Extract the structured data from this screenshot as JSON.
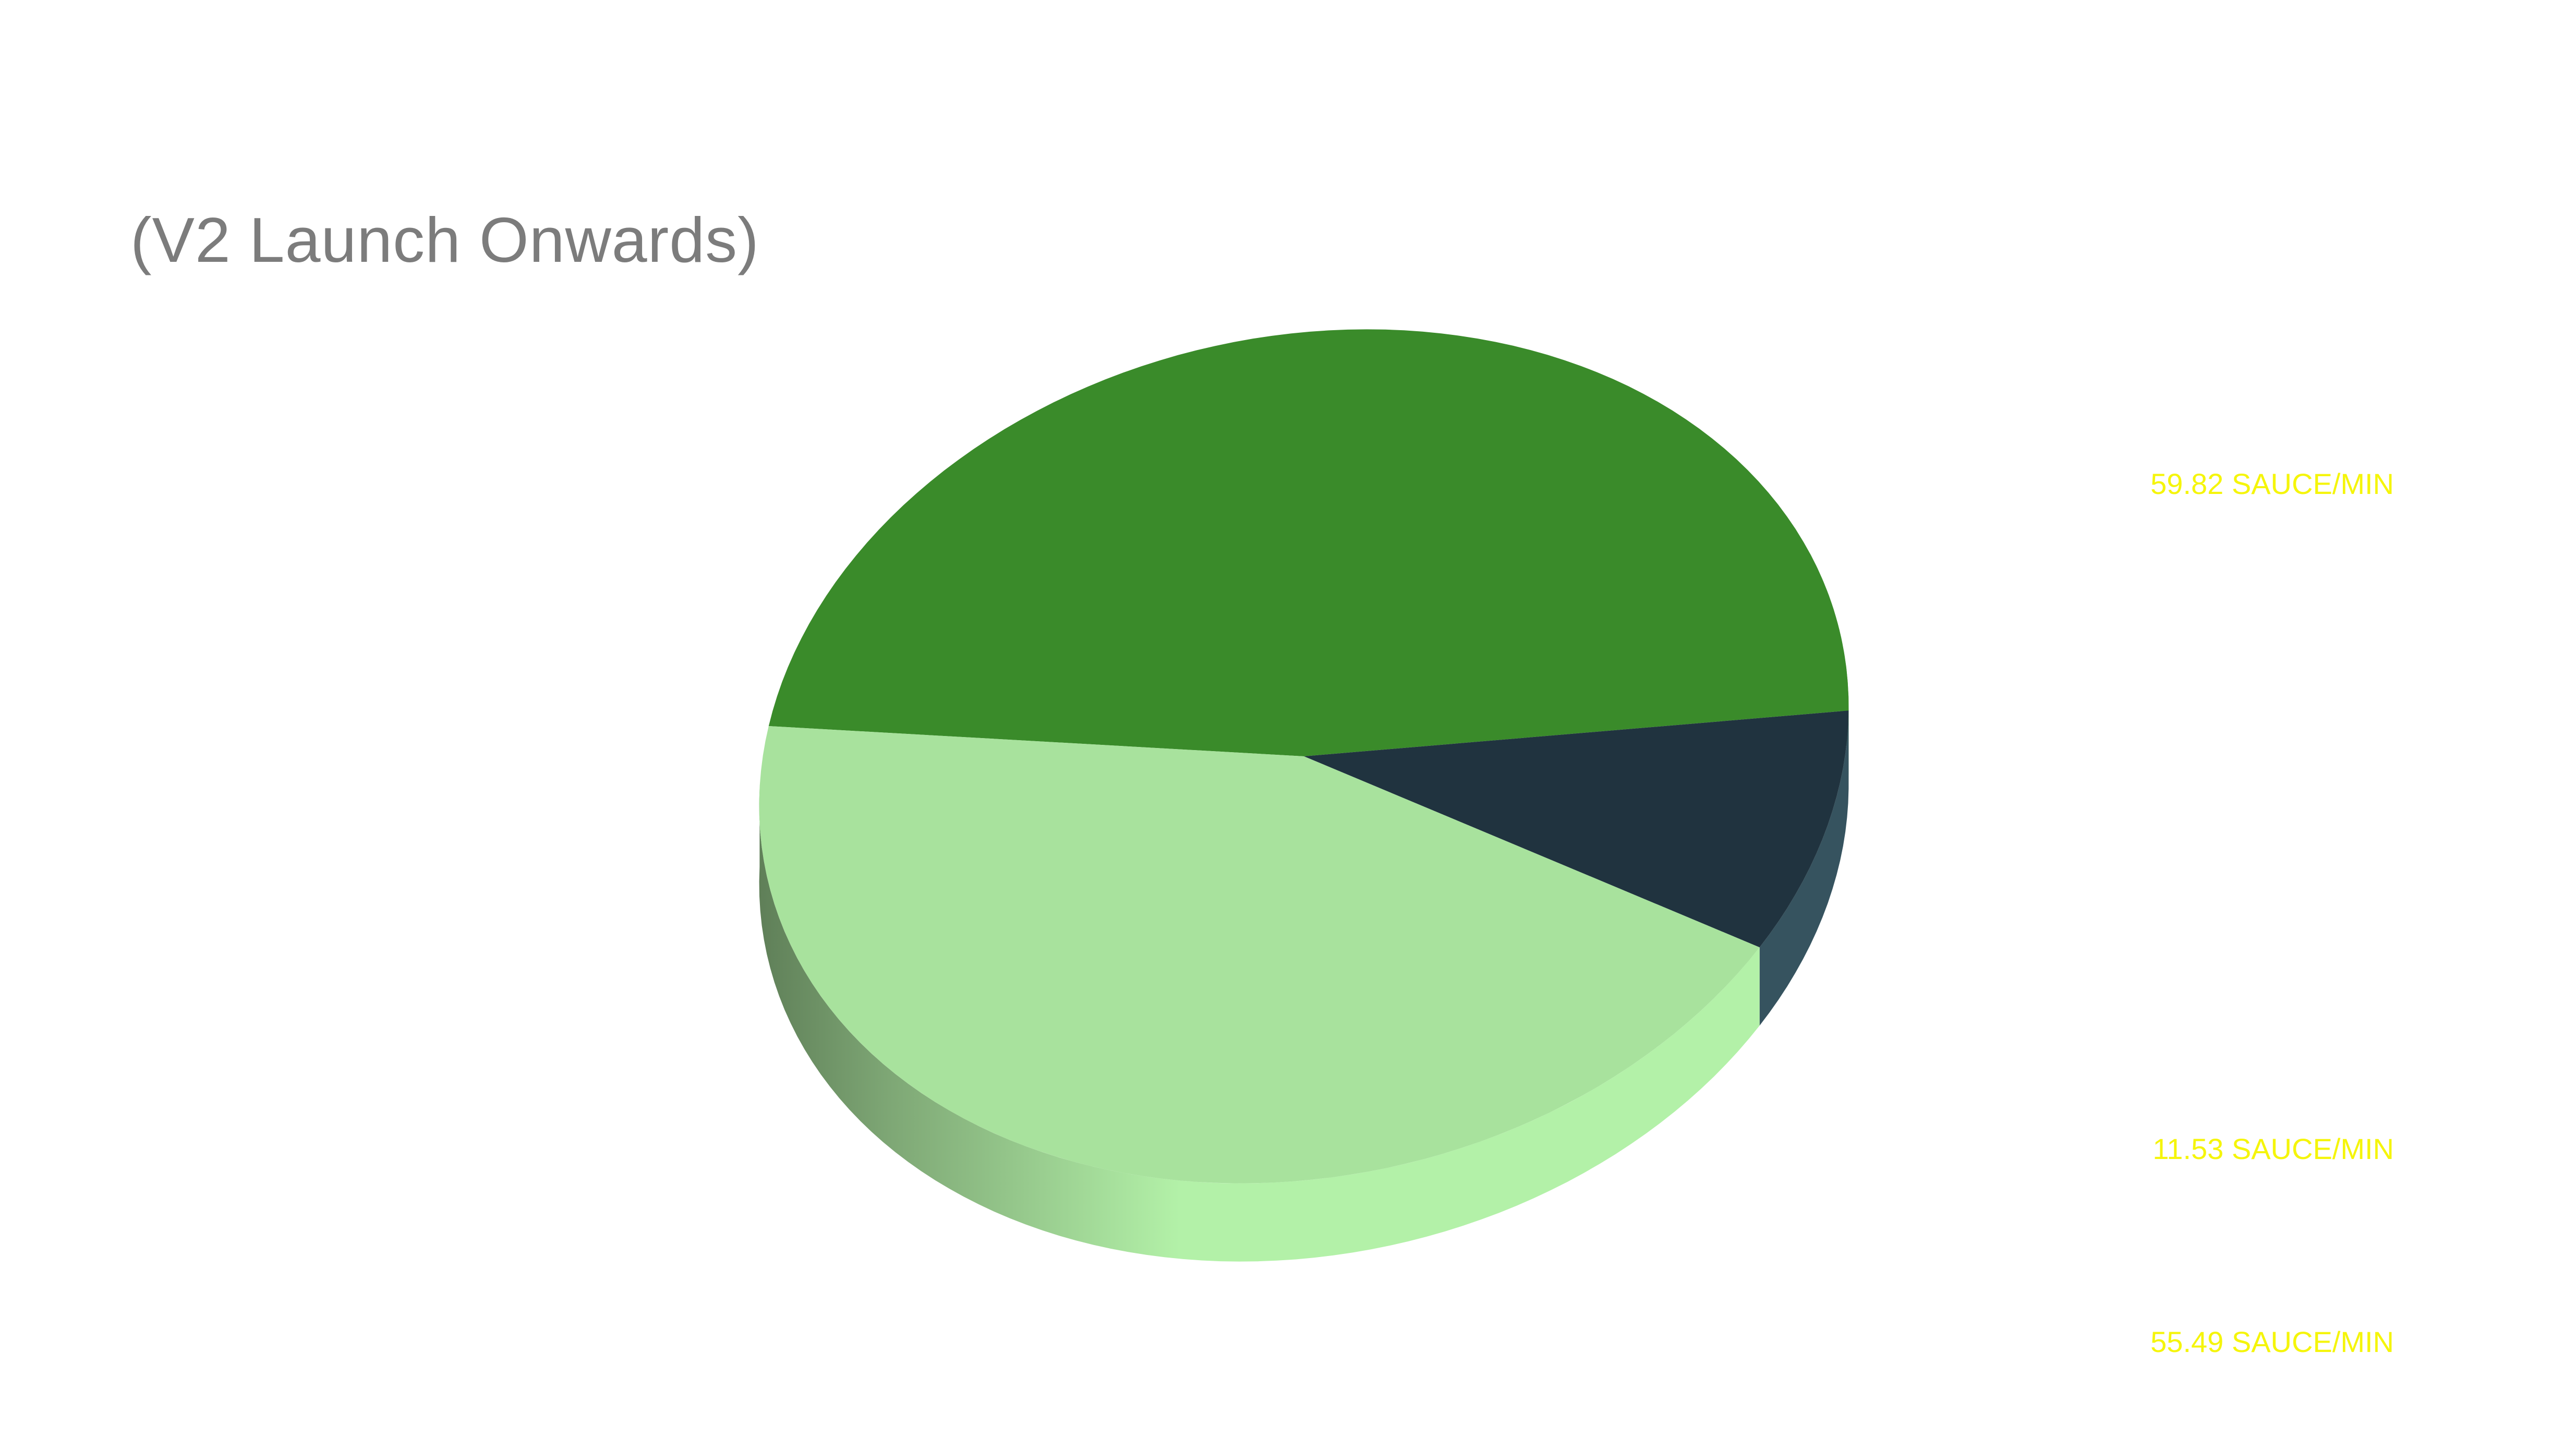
{
  "title": "(V2 Launch Onwards)",
  "chart_data": {
    "type": "pie",
    "style": "3d",
    "title": "(V2 Launch Onwards)",
    "slices": [
      {
        "label": "59.82 SAUCE/MIN",
        "value": 59.82,
        "color": "#3a8b2a",
        "side_color": "#52b042"
      },
      {
        "label": "11.53 SAUCE/MIN",
        "value": 11.53,
        "color": "#20333f",
        "side_color": "#36535f"
      },
      {
        "label": "55.49 SAUCE/MIN",
        "value": 55.49,
        "color": "#a8e29d",
        "side_color": "#b3f1a8"
      }
    ],
    "label_color": "#f5f50a"
  }
}
